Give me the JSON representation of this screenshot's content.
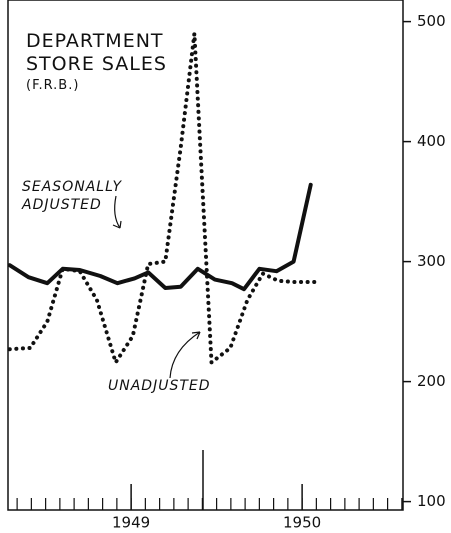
{
  "chart_data": {
    "type": "line",
    "title": "DEPARTMENT STORE SALES",
    "subtitle": "(F.R.B.)",
    "annotations": [
      "SEASONALLY ADJUSTED",
      "UNADJUSTED"
    ],
    "series": [
      {
        "name": "SEASONALLY ADJUSTED",
        "color": "#111111",
        "style": "solid",
        "x": [
          1948.29,
          1948.4,
          1948.51,
          1948.6,
          1948.7,
          1948.82,
          1948.92,
          1949.02,
          1949.1,
          1949.2,
          1949.29,
          1949.39,
          1949.49,
          1949.59,
          1949.66,
          1949.75,
          1949.85,
          1949.95,
          1950.05
        ],
        "values": [
          297,
          287,
          282,
          294,
          293,
          288,
          282,
          286,
          291,
          278,
          279,
          294,
          285,
          282,
          277,
          294,
          292,
          300,
          364
        ]
      },
      {
        "name": "UNADJUSTED",
        "color": "#111111",
        "style": "dotted",
        "x": [
          1948.29,
          1948.41,
          1948.51,
          1948.6,
          1948.7,
          1948.8,
          1948.91,
          1949.01,
          1949.1,
          1949.2,
          1949.29,
          1949.37,
          1949.47,
          1949.58,
          1949.68,
          1949.77,
          1949.86,
          1949.95,
          1950.08
        ],
        "values": [
          227,
          228,
          250,
          294,
          292,
          268,
          216,
          238,
          298,
          300,
          395,
          490,
          216,
          228,
          268,
          290,
          284,
          283,
          283
        ]
      }
    ],
    "xlim": [
      1948.28,
      1950.59
    ],
    "xticks": [
      1949,
      1950
    ],
    "minor_ticks_per_year": 12,
    "ylim": [
      93,
      518
    ],
    "yticks": [
      100,
      200,
      300,
      400,
      500
    ],
    "y_axis_side": "right",
    "grid": false
  }
}
